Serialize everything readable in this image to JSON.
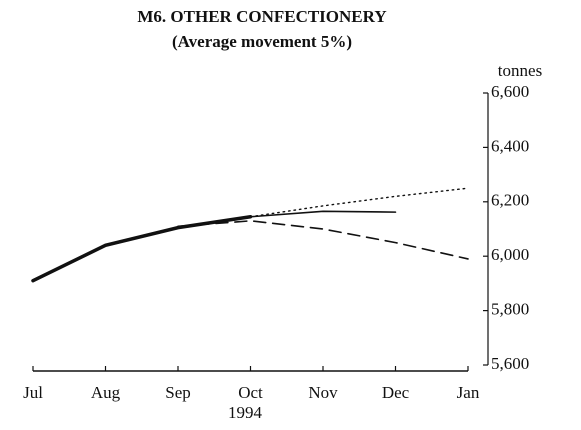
{
  "chart_data": {
    "type": "line",
    "title": "M6. OTHER CONFECTIONERY",
    "subtitle": "(Average movement 5%)",
    "y_axis_label": "tonnes",
    "x_sublabel": "1994",
    "categories": [
      "Jul",
      "Aug",
      "Sep",
      "Oct",
      "Nov",
      "Dec",
      "Jan"
    ],
    "series": [
      {
        "color": "#111",
        "line_width": 3.5,
        "dash": "solid",
        "values": [
          5910,
          6040,
          6105,
          6145,
          null,
          null,
          null
        ]
      },
      {
        "color": "#111",
        "line_width": 1.6,
        "dash": "solid",
        "values": [
          null,
          null,
          null,
          6145,
          6165,
          6162,
          null
        ]
      },
      {
        "color": "#111",
        "line_width": 1.4,
        "dash": "dotted",
        "values": [
          null,
          null,
          null,
          6145,
          6185,
          6220,
          6250
        ]
      },
      {
        "color": "#111",
        "line_width": 1.6,
        "dash": "dashed",
        "values": [
          null,
          null,
          6110,
          6130,
          6100,
          6050,
          5990
        ]
      }
    ],
    "ylim": [
      5600,
      6600
    ],
    "yticks": [
      {
        "value": 5600,
        "label": "5,600"
      },
      {
        "value": 5800,
        "label": "5,800"
      },
      {
        "value": 6000,
        "label": "6,000"
      },
      {
        "value": 6200,
        "label": "6,200"
      },
      {
        "value": 6400,
        "label": "6,400"
      },
      {
        "value": 6600,
        "label": "6,600"
      }
    ],
    "y_axis_side": "right"
  }
}
